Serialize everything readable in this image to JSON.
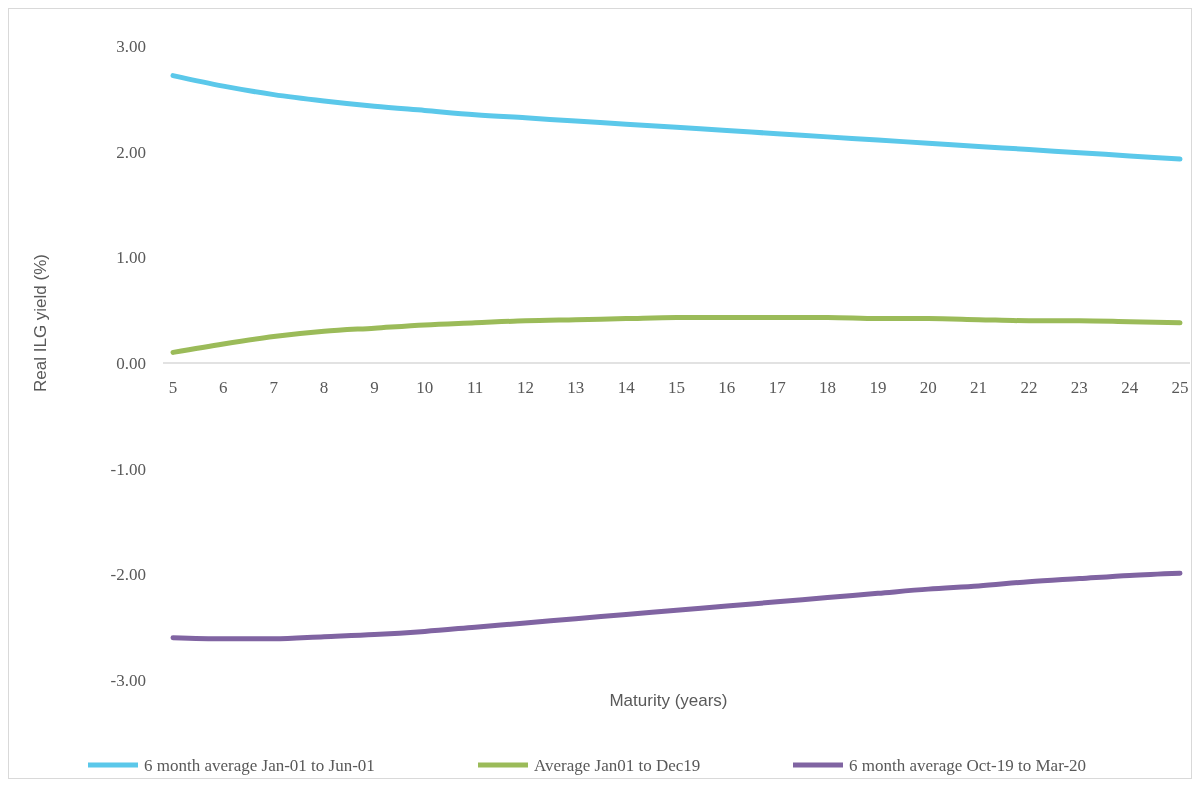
{
  "chart_data": {
    "type": "line",
    "xlabel": "Maturity (years)",
    "ylabel": "Real ILG yield (%)",
    "categories": [
      "5",
      "6",
      "7",
      "8",
      "9",
      "10",
      "11",
      "12",
      "13",
      "14",
      "15",
      "16",
      "17",
      "18",
      "19",
      "20",
      "21",
      "22",
      "23",
      "24",
      "25"
    ],
    "series": [
      {
        "name": "6 month average Jan-01 to Jun-01",
        "color": "#5bc8ea",
        "values": [
          2.72,
          2.62,
          2.54,
          2.48,
          2.43,
          2.39,
          2.35,
          2.32,
          2.29,
          2.26,
          2.23,
          2.2,
          2.17,
          2.14,
          2.11,
          2.08,
          2.05,
          2.02,
          1.99,
          1.96,
          1.93
        ]
      },
      {
        "name": "Average Jan01 to Dec19",
        "color": "#9bbb59",
        "values": [
          0.1,
          0.18,
          0.25,
          0.3,
          0.33,
          0.36,
          0.38,
          0.4,
          0.41,
          0.42,
          0.43,
          0.43,
          0.43,
          0.43,
          0.42,
          0.42,
          0.41,
          0.4,
          0.4,
          0.39,
          0.38
        ]
      },
      {
        "name": "6 month average Oct-19 to Mar-20",
        "color": "#8064a2",
        "values": [
          -2.6,
          -2.61,
          -2.61,
          -2.59,
          -2.57,
          -2.54,
          -2.5,
          -2.46,
          -2.42,
          -2.38,
          -2.34,
          -2.3,
          -2.26,
          -2.22,
          -2.18,
          -2.14,
          -2.11,
          -2.07,
          -2.04,
          -2.01,
          -1.99
        ]
      }
    ],
    "ylim": [
      -3,
      3
    ],
    "yticks": [
      {
        "value": -3,
        "label": "-3.00"
      },
      {
        "value": -2,
        "label": "-2.00"
      },
      {
        "value": -1,
        "label": "-1.00"
      },
      {
        "value": 0,
        "label": "0.00"
      },
      {
        "value": 1,
        "label": "1.00"
      },
      {
        "value": 2,
        "label": "2.00"
      },
      {
        "value": 3,
        "label": "3.00"
      }
    ],
    "grid": false,
    "legend": "bottom",
    "marker": "none",
    "line_style": "solid"
  }
}
